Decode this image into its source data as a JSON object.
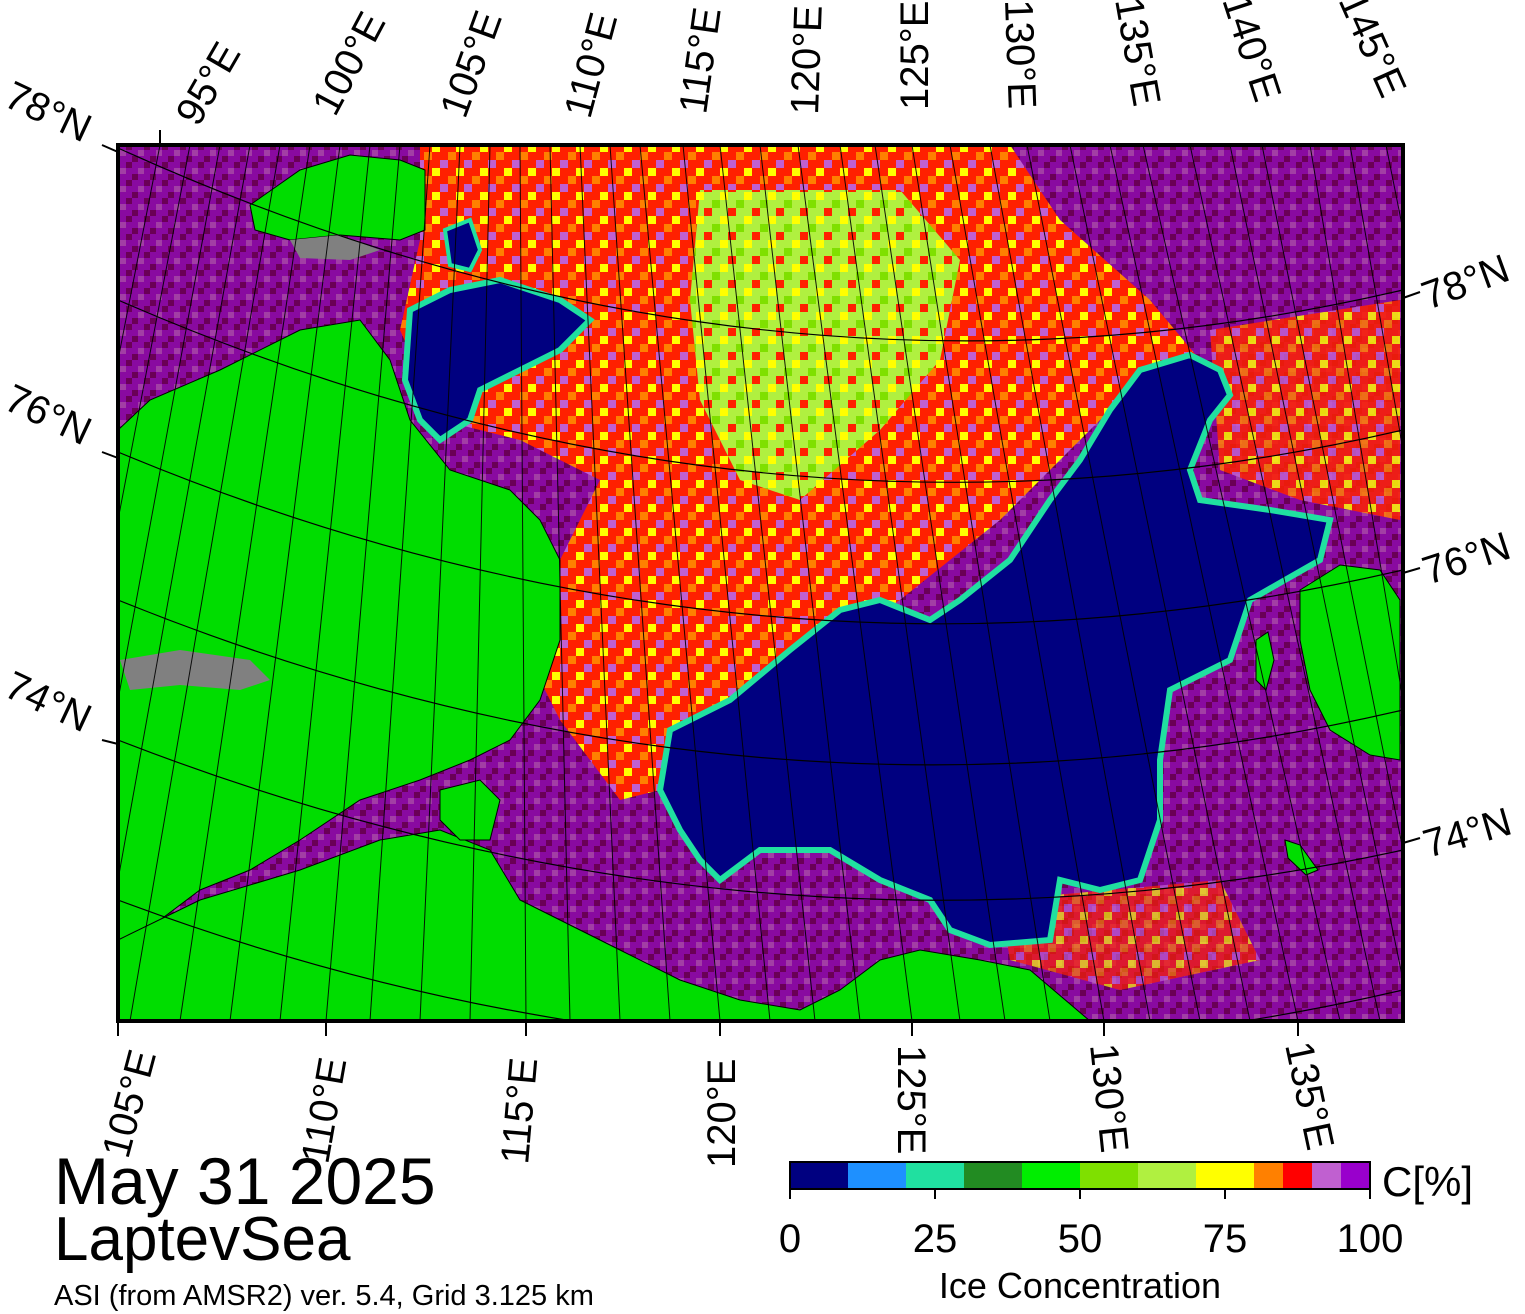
{
  "map": {
    "date": "May 31 2025",
    "region": "LaptevSea",
    "source": "ASI (from AMSR2) ver. 5.4,  Grid 3.125 km",
    "top_lon_labels": [
      "95°E",
      "100°E",
      "105°E",
      "110°E",
      "115°E",
      "120°E",
      "125°E",
      "130°E",
      "135°E",
      "140°E",
      "145°E"
    ],
    "bottom_lon_labels": [
      "105°E",
      "110°E",
      "115°E",
      "120°E",
      "125°E",
      "130°E",
      "135°E"
    ],
    "left_lat_labels": [
      "78°N",
      "76°N",
      "74°N"
    ],
    "right_lat_labels": [
      "78°N",
      "76°N",
      "74°N"
    ],
    "colors": {
      "land": "#00dd00",
      "coast_gray": "#808080",
      "open_water": "#000080",
      "ice_high": "#6b0057",
      "ice_purple": "#9900cc"
    }
  },
  "colorbar": {
    "title": "Ice Concentration",
    "unit": "C[%]",
    "ticks": [
      "0",
      "25",
      "50",
      "75",
      "100"
    ],
    "bins": [
      {
        "from": 0,
        "to": 10,
        "color": "#000080"
      },
      {
        "from": 10,
        "to": 20,
        "color": "#1e90ff"
      },
      {
        "from": 20,
        "to": 30,
        "color": "#20e0a0"
      },
      {
        "from": 30,
        "to": 40,
        "color": "#228b22"
      },
      {
        "from": 40,
        "to": 50,
        "color": "#00ee00"
      },
      {
        "from": 50,
        "to": 60,
        "color": "#7fe000"
      },
      {
        "from": 60,
        "to": 70,
        "color": "#b0f040"
      },
      {
        "from": 70,
        "to": 80,
        "color": "#ffff00"
      },
      {
        "from": 80,
        "to": 85,
        "color": "#ff8000"
      },
      {
        "from": 85,
        "to": 90,
        "color": "#ff0000"
      },
      {
        "from": 90,
        "to": 95,
        "color": "#c060d0"
      },
      {
        "from": 95,
        "to": 100,
        "color": "#9900cc"
      }
    ]
  }
}
